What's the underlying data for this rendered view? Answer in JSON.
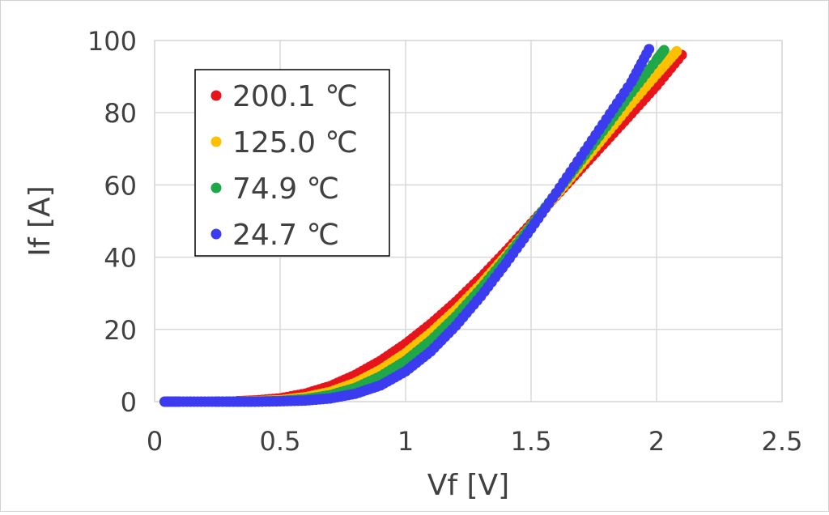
{
  "chart_data": {
    "type": "scatter",
    "title": "",
    "xlabel": "Vf [V]",
    "ylabel": "If [A]",
    "xlim": [
      0,
      2.5
    ],
    "ylim": [
      0,
      100
    ],
    "xticks": [
      "0",
      "0.5",
      "1",
      "1.5",
      "2",
      "2.5"
    ],
    "yticks": [
      "0",
      "20",
      "40",
      "60",
      "80",
      "100"
    ],
    "grid": true,
    "legend_position": "top-left",
    "series": [
      {
        "name": "200.1 ℃",
        "color": "#e8141b",
        "points": [
          [
            0.33,
            0.1
          ],
          [
            0.4,
            0.3
          ],
          [
            0.5,
            0.9
          ],
          [
            0.6,
            2.2
          ],
          [
            0.7,
            4.3
          ],
          [
            0.8,
            7.4
          ],
          [
            0.9,
            11.3
          ],
          [
            1.0,
            16.0
          ],
          [
            1.1,
            21.5
          ],
          [
            1.2,
            27.6
          ],
          [
            1.3,
            34.4
          ],
          [
            1.4,
            41.7
          ],
          [
            1.5,
            49.3
          ],
          [
            1.6,
            57.0
          ],
          [
            1.7,
            64.6
          ],
          [
            1.8,
            72.2
          ],
          [
            1.9,
            79.8
          ],
          [
            2.0,
            87.5
          ],
          [
            2.1,
            96.0
          ]
        ]
      },
      {
        "name": "125.0 ℃",
        "color": "#ffc000",
        "points": [
          [
            0.3,
            0.0
          ],
          [
            0.4,
            0.1
          ],
          [
            0.5,
            0.4
          ],
          [
            0.6,
            1.2
          ],
          [
            0.7,
            2.7
          ],
          [
            0.8,
            5.2
          ],
          [
            0.9,
            8.8
          ],
          [
            1.0,
            13.4
          ],
          [
            1.1,
            19.0
          ],
          [
            1.2,
            25.4
          ],
          [
            1.3,
            32.5
          ],
          [
            1.4,
            40.4
          ],
          [
            1.5,
            48.8
          ],
          [
            1.6,
            57.2
          ],
          [
            1.7,
            65.7
          ],
          [
            1.8,
            74.2
          ],
          [
            1.9,
            82.6
          ],
          [
            2.0,
            90.7
          ],
          [
            2.08,
            97.0
          ]
        ]
      },
      {
        "name": "74.9 ℃",
        "color": "#1fa84a",
        "points": [
          [
            0.25,
            0.0
          ],
          [
            0.4,
            0.0
          ],
          [
            0.5,
            0.2
          ],
          [
            0.6,
            0.7
          ],
          [
            0.7,
            1.8
          ],
          [
            0.8,
            3.8
          ],
          [
            0.9,
            7.0
          ],
          [
            1.0,
            11.3
          ],
          [
            1.1,
            16.9
          ],
          [
            1.2,
            23.6
          ],
          [
            1.3,
            31.3
          ],
          [
            1.4,
            39.8
          ],
          [
            1.5,
            48.7
          ],
          [
            1.6,
            57.7
          ],
          [
            1.7,
            66.9
          ],
          [
            1.8,
            76.2
          ],
          [
            1.9,
            85.6
          ],
          [
            2.0,
            94.6
          ],
          [
            2.03,
            97.3
          ]
        ]
      },
      {
        "name": "24.7 ℃",
        "color": "#3b3bf0",
        "points": [
          [
            0.04,
            0.0
          ],
          [
            0.1,
            0.0
          ],
          [
            0.2,
            0.0
          ],
          [
            0.3,
            0.0
          ],
          [
            0.4,
            0.0
          ],
          [
            0.5,
            0.1
          ],
          [
            0.6,
            0.3
          ],
          [
            0.7,
            0.9
          ],
          [
            0.8,
            2.2
          ],
          [
            0.9,
            4.5
          ],
          [
            1.0,
            8.4
          ],
          [
            1.1,
            13.9
          ],
          [
            1.2,
            21.0
          ],
          [
            1.3,
            29.2
          ],
          [
            1.4,
            38.3
          ],
          [
            1.5,
            47.9
          ],
          [
            1.6,
            57.8
          ],
          [
            1.7,
            68.0
          ],
          [
            1.8,
            78.2
          ],
          [
            1.9,
            88.5
          ],
          [
            1.97,
            97.6
          ]
        ]
      }
    ]
  }
}
